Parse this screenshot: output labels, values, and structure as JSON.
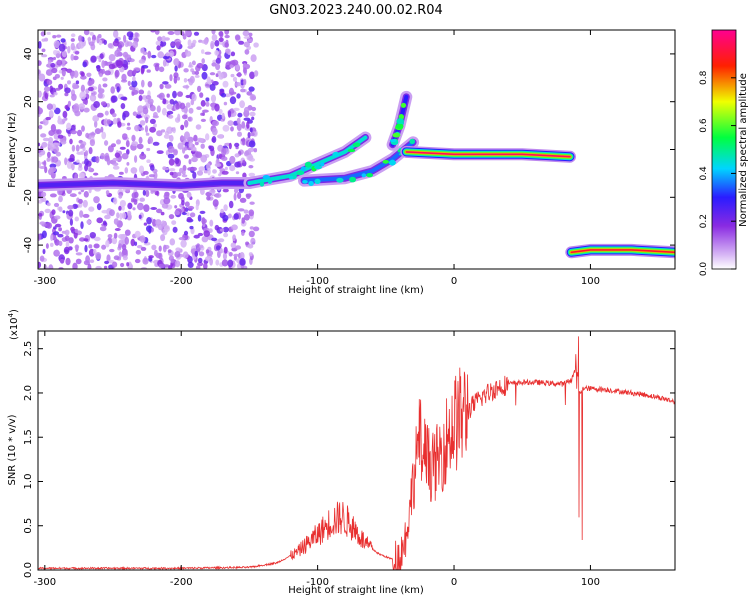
{
  "title": "GN03.2023.240.00.02.R04",
  "chart_data": [
    {
      "type": "heatmap",
      "xlabel": "Height of straight line (km)",
      "ylabel": "Frequency (Hz)",
      "xlim": [
        -305,
        162
      ],
      "ylim": [
        -50,
        50
      ],
      "xticks": [
        -300,
        -200,
        -100,
        0,
        100
      ],
      "yticks": [
        -40,
        -20,
        0,
        20,
        40
      ],
      "colorbar": {
        "label": "Normalized spectral amplitude",
        "range": [
          0,
          1
        ],
        "ticks": [
          "0.0",
          "0.2",
          "0.4",
          "0.6",
          "0.8"
        ],
        "tick_values": [
          0,
          0.2,
          0.4,
          0.6,
          0.8
        ],
        "colormap": "rainbow (white → purple → blue → cyan → green → yellow → red → magenta)"
      },
      "features": [
        {
          "name": "noise-band",
          "x_range": [
            -305,
            -145
          ],
          "frequency": "broadband",
          "amplitude": 0.1
        },
        {
          "name": "trace-left",
          "points": [
            [
              -305,
              -15
            ],
            [
              -250,
              -14
            ],
            [
              -200,
              -15
            ],
            [
              -170,
              -14
            ],
            [
              -150,
              -14
            ]
          ],
          "amplitude": 0.25
        },
        {
          "name": "trace-rising",
          "points": [
            [
              -150,
              -14
            ],
            [
              -120,
              -11
            ],
            [
              -100,
              -6
            ],
            [
              -80,
              -1
            ],
            [
              -65,
              5
            ]
          ],
          "amplitude": 0.45
        },
        {
          "name": "trace-secondary",
          "points": [
            [
              -110,
              -13
            ],
            [
              -80,
              -12
            ],
            [
              -60,
              -9
            ],
            [
              -45,
              -4
            ],
            [
              -30,
              3
            ]
          ],
          "amplitude": 0.35
        },
        {
          "name": "trace-hook",
          "points": [
            [
              -45,
              2
            ],
            [
              -40,
              10
            ],
            [
              -35,
              22
            ]
          ],
          "amplitude": 0.3
        },
        {
          "name": "main-line",
          "points": [
            [
              -35,
              -1
            ],
            [
              0,
              -2
            ],
            [
              50,
              -2
            ],
            [
              85,
              -3
            ]
          ],
          "amplitude": 0.95
        },
        {
          "name": "lower-line",
          "points": [
            [
              86,
              -43
            ],
            [
              100,
              -42
            ],
            [
              130,
              -42
            ],
            [
              162,
              -43
            ]
          ],
          "amplitude": 0.9
        }
      ]
    },
    {
      "type": "line",
      "xlabel": "Height of straight line (km)",
      "ylabel": "SNR (10 * v/v)",
      "y_multiplier": "(x10",
      "y_multiplier_exp": "4",
      "y_multiplier_close": ")",
      "xlim": [
        -305,
        162
      ],
      "ylim": [
        0,
        2.7
      ],
      "xticks": [
        -300,
        -200,
        -100,
        0,
        100
      ],
      "yticks": [
        0,
        0.5,
        1,
        1.5,
        2,
        2.5
      ],
      "ytick_labels": [
        "0.0",
        "0.5",
        "1.0",
        "1.5",
        "2.0",
        "2.5"
      ],
      "line_color": "#e83030",
      "series": [
        {
          "x": [
            -305,
            -250,
            -200,
            -150,
            -130,
            -115,
            -100,
            -90,
            -82,
            -75,
            -65,
            -55,
            -45,
            -40,
            -35,
            -30,
            -25,
            -20,
            -15,
            -10,
            -5,
            0,
            10,
            20,
            30,
            40,
            50,
            60,
            70,
            80,
            86,
            90,
            92,
            95,
            100,
            110,
            120,
            130,
            140,
            150,
            162
          ],
          "y": [
            0.02,
            0.02,
            0.02,
            0.03,
            0.08,
            0.2,
            0.4,
            0.55,
            0.6,
            0.5,
            0.3,
            0.18,
            0.12,
            0.13,
            0.4,
            1.0,
            1.5,
            1.25,
            1.15,
            1.3,
            1.5,
            1.65,
            1.8,
            1.95,
            2.05,
            2.1,
            2.12,
            2.12,
            2.11,
            2.1,
            2.15,
            2.3,
            2.0,
            2.05,
            2.05,
            2.04,
            2.02,
            2.0,
            1.98,
            1.95,
            1.9
          ]
        }
      ]
    }
  ]
}
